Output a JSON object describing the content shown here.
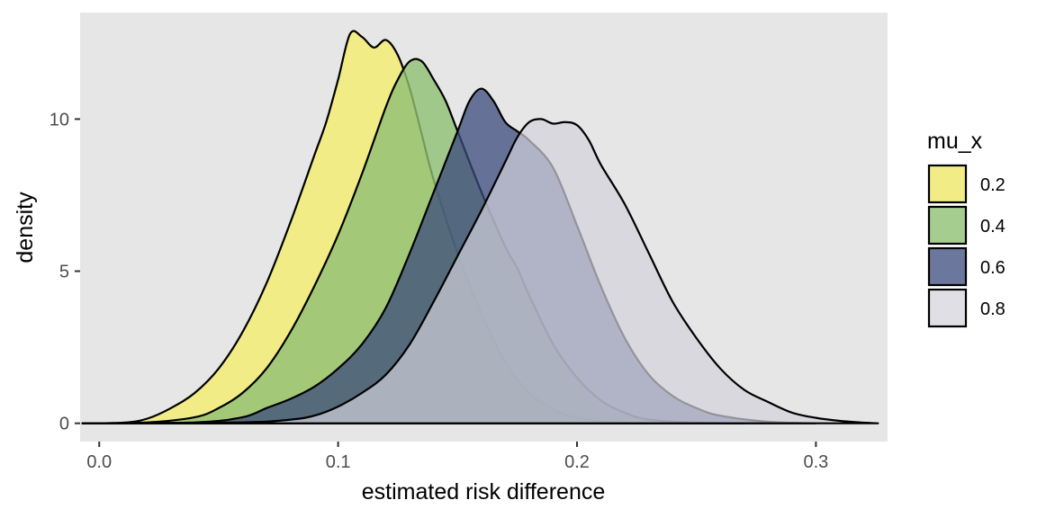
{
  "chart_data": {
    "type": "area",
    "subtype": "overlapping density curves",
    "xlabel": "estimated risk difference",
    "ylabel": "density",
    "xlim": [
      -0.008,
      0.33
    ],
    "ylim": [
      -0.6,
      13.5
    ],
    "x_ticks": [
      0.0,
      0.1,
      0.2,
      0.3
    ],
    "x_tick_labels": [
      "0.0",
      "0.1",
      "0.2",
      "0.3"
    ],
    "y_ticks": [
      0,
      5,
      10
    ],
    "y_tick_labels": [
      "0",
      "5",
      "10"
    ],
    "grid": false,
    "panel_background": "#e6e6e6",
    "legend": {
      "title": "mu_x",
      "placement": "right"
    },
    "series": [
      {
        "name": "0.2",
        "color": "#f1ec86",
        "opacity": 1.0,
        "points": [
          [
            -0.007,
            0
          ],
          [
            0.01,
            0.02
          ],
          [
            0.02,
            0.15
          ],
          [
            0.03,
            0.5
          ],
          [
            0.04,
            1.0
          ],
          [
            0.05,
            1.8
          ],
          [
            0.06,
            3.0
          ],
          [
            0.07,
            4.6
          ],
          [
            0.08,
            6.6
          ],
          [
            0.09,
            8.8
          ],
          [
            0.095,
            9.9
          ],
          [
            0.1,
            11.3
          ],
          [
            0.105,
            12.8
          ],
          [
            0.11,
            12.7
          ],
          [
            0.115,
            12.35
          ],
          [
            0.12,
            12.6
          ],
          [
            0.125,
            12.1
          ],
          [
            0.13,
            11.0
          ],
          [
            0.135,
            9.5
          ],
          [
            0.14,
            8.0
          ],
          [
            0.15,
            5.6
          ],
          [
            0.16,
            3.6
          ],
          [
            0.17,
            2.0
          ],
          [
            0.18,
            1.0
          ],
          [
            0.19,
            0.45
          ],
          [
            0.2,
            0.18
          ],
          [
            0.215,
            0.03
          ],
          [
            0.23,
            0
          ]
        ]
      },
      {
        "name": "0.4",
        "color": "#90c074",
        "opacity": 0.8,
        "points": [
          [
            -0.007,
            0
          ],
          [
            0.02,
            0.03
          ],
          [
            0.04,
            0.2
          ],
          [
            0.05,
            0.5
          ],
          [
            0.06,
            1.0
          ],
          [
            0.07,
            1.8
          ],
          [
            0.08,
            3.0
          ],
          [
            0.09,
            4.5
          ],
          [
            0.1,
            6.2
          ],
          [
            0.11,
            8.2
          ],
          [
            0.12,
            10.4
          ],
          [
            0.125,
            11.3
          ],
          [
            0.13,
            11.9
          ],
          [
            0.135,
            11.9
          ],
          [
            0.14,
            11.3
          ],
          [
            0.145,
            10.6
          ],
          [
            0.15,
            9.6
          ],
          [
            0.16,
            7.6
          ],
          [
            0.17,
            5.8
          ],
          [
            0.175,
            5.1
          ],
          [
            0.18,
            4.2
          ],
          [
            0.19,
            2.6
          ],
          [
            0.2,
            1.5
          ],
          [
            0.21,
            0.75
          ],
          [
            0.22,
            0.35
          ],
          [
            0.23,
            0.12
          ],
          [
            0.25,
            0.02
          ],
          [
            0.27,
            0
          ]
        ]
      },
      {
        "name": "0.6",
        "color": "#3b4a7c",
        "opacity": 0.75,
        "points": [
          [
            -0.007,
            0
          ],
          [
            0.04,
            0.03
          ],
          [
            0.06,
            0.2
          ],
          [
            0.07,
            0.5
          ],
          [
            0.08,
            0.8
          ],
          [
            0.09,
            1.2
          ],
          [
            0.1,
            1.8
          ],
          [
            0.11,
            2.6
          ],
          [
            0.12,
            3.8
          ],
          [
            0.13,
            5.6
          ],
          [
            0.14,
            7.6
          ],
          [
            0.15,
            9.6
          ],
          [
            0.155,
            10.6
          ],
          [
            0.16,
            11.0
          ],
          [
            0.165,
            10.6
          ],
          [
            0.17,
            9.9
          ],
          [
            0.175,
            9.6
          ],
          [
            0.18,
            9.3
          ],
          [
            0.19,
            8.4
          ],
          [
            0.2,
            6.5
          ],
          [
            0.21,
            4.5
          ],
          [
            0.22,
            2.8
          ],
          [
            0.23,
            1.6
          ],
          [
            0.24,
            0.9
          ],
          [
            0.25,
            0.5
          ],
          [
            0.26,
            0.25
          ],
          [
            0.28,
            0.05
          ],
          [
            0.3,
            0
          ]
        ]
      },
      {
        "name": "0.8",
        "color": "#d1d1da",
        "opacity": 0.7,
        "points": [
          [
            -0.007,
            0
          ],
          [
            0.06,
            0.03
          ],
          [
            0.08,
            0.12
          ],
          [
            0.09,
            0.25
          ],
          [
            0.1,
            0.55
          ],
          [
            0.11,
            1.0
          ],
          [
            0.12,
            1.6
          ],
          [
            0.13,
            2.6
          ],
          [
            0.14,
            4.0
          ],
          [
            0.15,
            5.5
          ],
          [
            0.16,
            7.0
          ],
          [
            0.17,
            8.6
          ],
          [
            0.175,
            9.4
          ],
          [
            0.18,
            9.9
          ],
          [
            0.185,
            10.0
          ],
          [
            0.19,
            9.85
          ],
          [
            0.195,
            9.9
          ],
          [
            0.2,
            9.8
          ],
          [
            0.205,
            9.3
          ],
          [
            0.21,
            8.5
          ],
          [
            0.22,
            7.2
          ],
          [
            0.23,
            5.6
          ],
          [
            0.24,
            4.0
          ],
          [
            0.25,
            2.8
          ],
          [
            0.26,
            1.8
          ],
          [
            0.27,
            1.1
          ],
          [
            0.28,
            0.7
          ],
          [
            0.29,
            0.35
          ],
          [
            0.3,
            0.18
          ],
          [
            0.31,
            0.08
          ],
          [
            0.32,
            0.02
          ],
          [
            0.326,
            0
          ]
        ]
      }
    ]
  }
}
